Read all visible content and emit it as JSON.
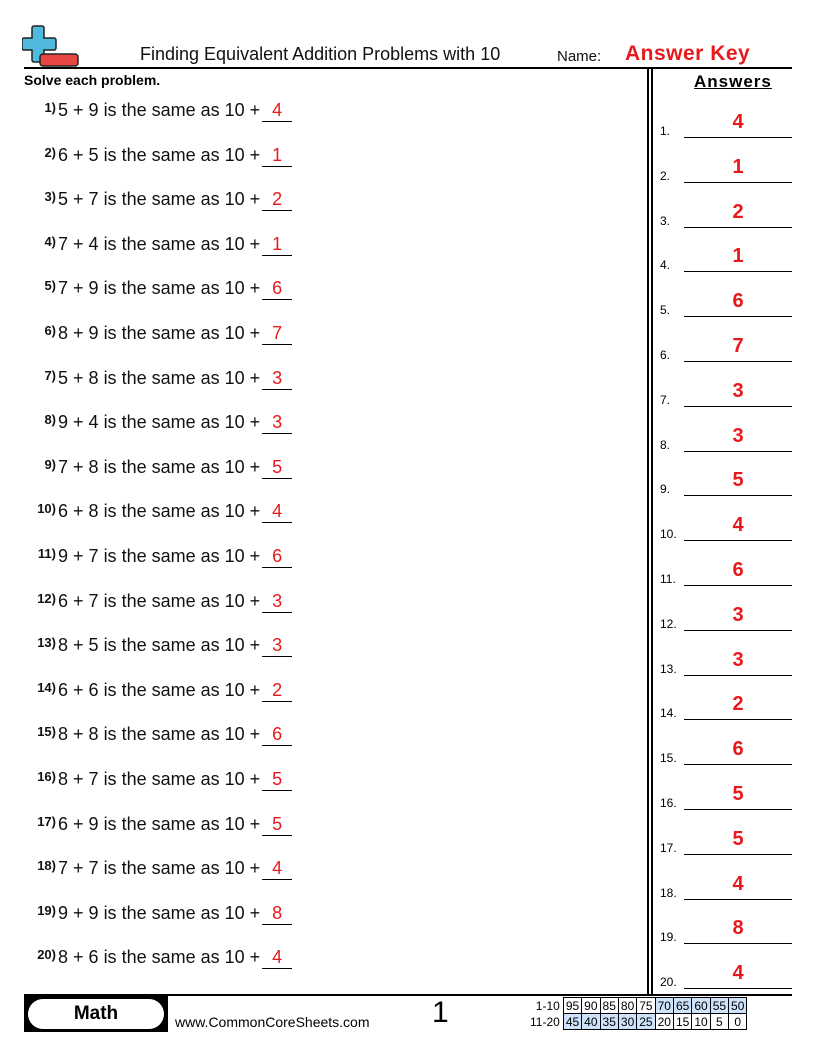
{
  "header": {
    "title": "Finding Equivalent Addition Problems with 10",
    "name_label": "Name:",
    "name_value": "Answer Key",
    "logo": "plus-minus-logo",
    "answer_color": "#e8191c",
    "logo_colors": {
      "plus": "#4fb9e0",
      "minus": "#e84545"
    }
  },
  "instructions": "Solve each problem.",
  "answers_title": "Answers",
  "problem_template": "is the same as 10 +",
  "problems": [
    {
      "num": "1)",
      "expr": "5 + 9",
      "answer": "4",
      "key_num": "1."
    },
    {
      "num": "2)",
      "expr": "6 + 5",
      "answer": "1",
      "key_num": "2."
    },
    {
      "num": "3)",
      "expr": "5 + 7",
      "answer": "2",
      "key_num": "3."
    },
    {
      "num": "4)",
      "expr": "7 + 4",
      "answer": "1",
      "key_num": "4."
    },
    {
      "num": "5)",
      "expr": "7 + 9",
      "answer": "6",
      "key_num": "5."
    },
    {
      "num": "6)",
      "expr": "8 + 9",
      "answer": "7",
      "key_num": "6."
    },
    {
      "num": "7)",
      "expr": "5 + 8",
      "answer": "3",
      "key_num": "7."
    },
    {
      "num": "8)",
      "expr": "9 + 4",
      "answer": "3",
      "key_num": "8."
    },
    {
      "num": "9)",
      "expr": "7 + 8",
      "answer": "5",
      "key_num": "9."
    },
    {
      "num": "10)",
      "expr": "6 + 8",
      "answer": "4",
      "key_num": "10."
    },
    {
      "num": "11)",
      "expr": "9 + 7",
      "answer": "6",
      "key_num": "11."
    },
    {
      "num": "12)",
      "expr": "6 + 7",
      "answer": "3",
      "key_num": "12."
    },
    {
      "num": "13)",
      "expr": "8 + 5",
      "answer": "3",
      "key_num": "13."
    },
    {
      "num": "14)",
      "expr": "6 + 6",
      "answer": "2",
      "key_num": "14."
    },
    {
      "num": "15)",
      "expr": "8 + 8",
      "answer": "6",
      "key_num": "15."
    },
    {
      "num": "16)",
      "expr": "8 + 7",
      "answer": "5",
      "key_num": "16."
    },
    {
      "num": "17)",
      "expr": "6 + 9",
      "answer": "5",
      "key_num": "17."
    },
    {
      "num": "18)",
      "expr": "7 + 7",
      "answer": "4",
      "key_num": "18."
    },
    {
      "num": "19)",
      "expr": "9 + 9",
      "answer": "8",
      "key_num": "19."
    },
    {
      "num": "20)",
      "expr": "8 + 6",
      "answer": "4",
      "key_num": "20."
    }
  ],
  "footer": {
    "subject": "Math",
    "site": "www.CommonCoreSheets.com",
    "page": "1",
    "score_rows": [
      {
        "label": "1-10",
        "values": [
          "95",
          "90",
          "85",
          "80",
          "75",
          "70",
          "65",
          "60",
          "55",
          "50"
        ],
        "highlight": [
          false,
          false,
          false,
          false,
          false,
          true,
          true,
          true,
          true,
          true
        ]
      },
      {
        "label": "11-20",
        "values": [
          "45",
          "40",
          "35",
          "30",
          "25",
          "20",
          "15",
          "10",
          "5",
          "0"
        ],
        "highlight": [
          true,
          true,
          true,
          true,
          true,
          false,
          false,
          false,
          false,
          false
        ]
      }
    ],
    "highlight_color": "#cfe2fb"
  }
}
